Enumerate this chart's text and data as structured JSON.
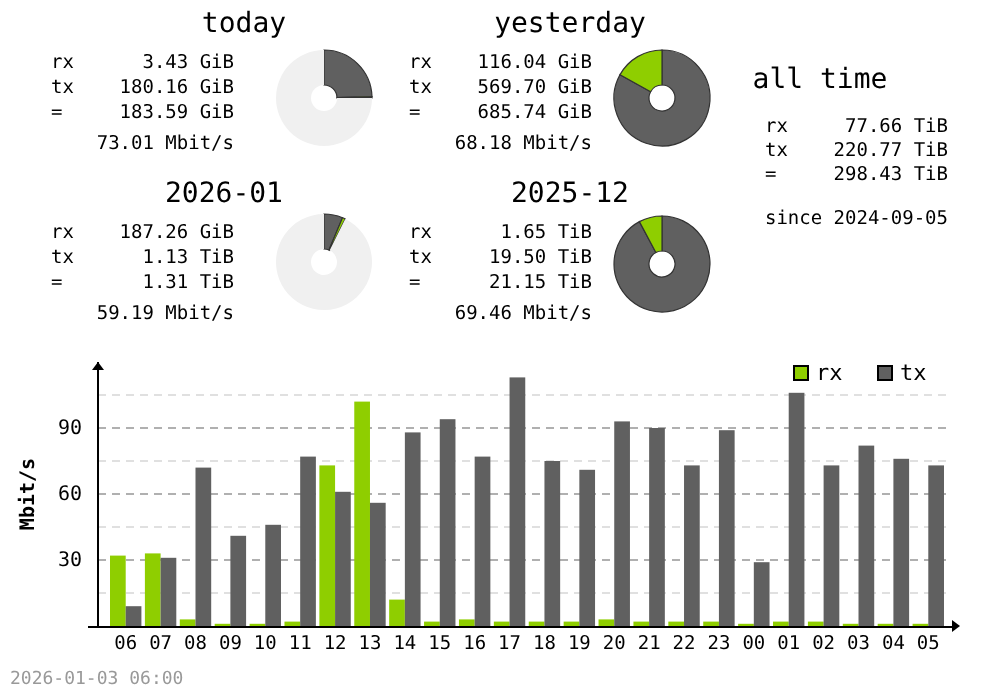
{
  "chart_data": [
    {
      "type": "donut",
      "title": "today",
      "categories": [
        null,
        null,
        null
      ],
      "values": [
        24.53,
        0.47,
        75
      ],
      "colors": [
        "#606060",
        "#8fce00",
        "#f0f0f0"
      ],
      "annotations": [
        "rx      3.43 GiB",
        "tx    180.16 GiB",
        "=     183.59 GiB",
        "73.01 Mbit/s"
      ]
    },
    {
      "type": "donut",
      "title": "yesterday",
      "categories": [
        null,
        null
      ],
      "values": [
        83.08,
        16.92
      ],
      "colors": [
        "#606060",
        "#8fce00"
      ],
      "annotations": [
        "rx    116.04 GiB",
        "tx    569.70 GiB",
        "=     685.74 GiB",
        "68.18 Mbit/s"
      ]
    },
    {
      "type": "donut",
      "title": "2026-01",
      "categories": [
        null,
        null,
        null
      ],
      "values": [
        6.3,
        1.0,
        92.7
      ],
      "colors": [
        "#606060",
        "#8fce00",
        "#f0f0f0"
      ],
      "annotations": [
        "rx    187.26 GiB",
        "tx      1.13 TiB",
        "=       1.31 TiB",
        "59.19 Mbit/s"
      ]
    },
    {
      "type": "donut",
      "title": "2025-12",
      "categories": [
        null,
        null
      ],
      "values": [
        92.2,
        7.8
      ],
      "colors": [
        "#606060",
        "#8fce00"
      ],
      "annotations": [
        "rx      1.65 TiB",
        "tx     19.50 TiB",
        "=      21.15 TiB",
        "69.46 Mbit/s"
      ]
    },
    {
      "type": "other",
      "title": "all time",
      "annotations": [
        "rx     77.66 TiB",
        "tx    220.77 TiB",
        "=     298.43 TiB",
        "since 2024-09-05"
      ]
    },
    {
      "type": "bar",
      "ylabel": "Mbit/s",
      "categories": [
        "06",
        "07",
        "08",
        "09",
        "10",
        "11",
        "12",
        "13",
        "14",
        "15",
        "16",
        "17",
        "18",
        "19",
        "20",
        "21",
        "22",
        "23",
        "00",
        "01",
        "02",
        "03",
        "04",
        "05"
      ],
      "series": [
        {
          "name": "rx",
          "color": "#8fce00",
          "values": [
            32,
            33,
            3,
            1,
            1,
            2,
            73,
            102,
            12,
            2,
            3,
            2,
            2,
            2,
            3,
            2,
            2,
            2,
            1,
            2,
            2,
            1,
            1,
            1
          ]
        },
        {
          "name": "tx",
          "color": "#606060",
          "values": [
            9,
            31,
            72,
            41,
            46,
            77,
            61,
            56,
            88,
            94,
            77,
            113,
            75,
            71,
            93,
            90,
            73,
            89,
            29,
            106,
            73,
            82,
            76,
            73
          ]
        }
      ],
      "ylim": [
        0,
        120
      ],
      "yticks": [
        {
          "value": 15,
          "label": null
        },
        30,
        {
          "value": 45,
          "label": null
        },
        60,
        {
          "value": 75,
          "label": null
        },
        90,
        {
          "value": 105,
          "label": null
        }
      ],
      "grid": "y",
      "legend": "top right",
      "annotations": [
        "2026-01-03 06:00"
      ]
    }
  ]
}
